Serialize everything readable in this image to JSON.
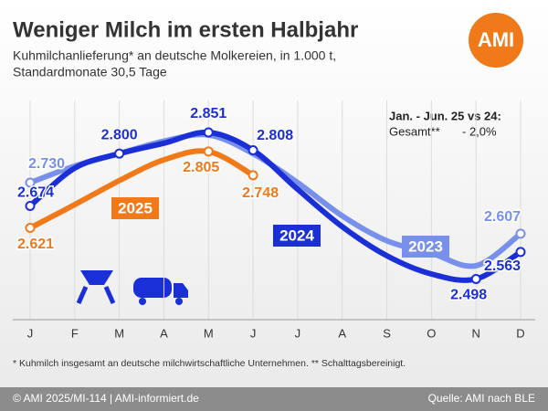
{
  "chart_data": {
    "type": "line",
    "title": "Weniger Milch im ersten Halbjahr",
    "subtitle": [
      "Kuhmilchanlieferung* an deutsche Molkereien, in 1.000 t,",
      "Standardmonate 30,5 Tage"
    ],
    "logo": "AMI",
    "categories": [
      "J",
      "F",
      "M",
      "A",
      "M",
      "J",
      "J",
      "A",
      "S",
      "O",
      "N",
      "D"
    ],
    "series": [
      {
        "name": "2023",
        "color": "#7890ec",
        "values": [
          2730,
          2770,
          2800,
          2830,
          2845,
          2800,
          2730,
          2650,
          2590,
          2560,
          2530,
          2607
        ],
        "value_labels": [
          "2.730",
          null,
          null,
          null,
          null,
          null,
          null,
          null,
          null,
          null,
          null,
          "2.607"
        ]
      },
      {
        "name": "2024",
        "color": "#1a2fd6",
        "values": [
          2674,
          2765,
          2800,
          2825,
          2851,
          2808,
          2714,
          2624,
          2554,
          2510,
          2498,
          2563
        ],
        "value_labels": [
          "2.674",
          null,
          "2.800",
          null,
          "2.851",
          "2.808",
          null,
          null,
          null,
          null,
          "2.498",
          "2.563"
        ]
      },
      {
        "name": "2025",
        "color": "#f07a1a",
        "values": [
          2621,
          2677,
          2735,
          2785,
          2805,
          2748,
          null,
          null,
          null,
          null,
          null,
          null
        ],
        "value_labels": [
          "2.621",
          null,
          null,
          null,
          "2.805",
          "2.748",
          null,
          null,
          null,
          null,
          null,
          null
        ]
      }
    ],
    "ylim": [
      2400,
      2950
    ],
    "grid": true,
    "annotation": {
      "title": "Jan. - Jun. 25 vs 24:",
      "label": "Gesamt**",
      "value": "- 2,0%"
    },
    "footnote": "* Kuhmilch insgesamt an deutsche milchwirtschaftliche Unternehmen. ** Schalttagsbereinigt.",
    "footer_left": "© AMI 2025/MI-114 | AMI-informiert.de",
    "footer_right": "Quelle: AMI nach BLE"
  }
}
